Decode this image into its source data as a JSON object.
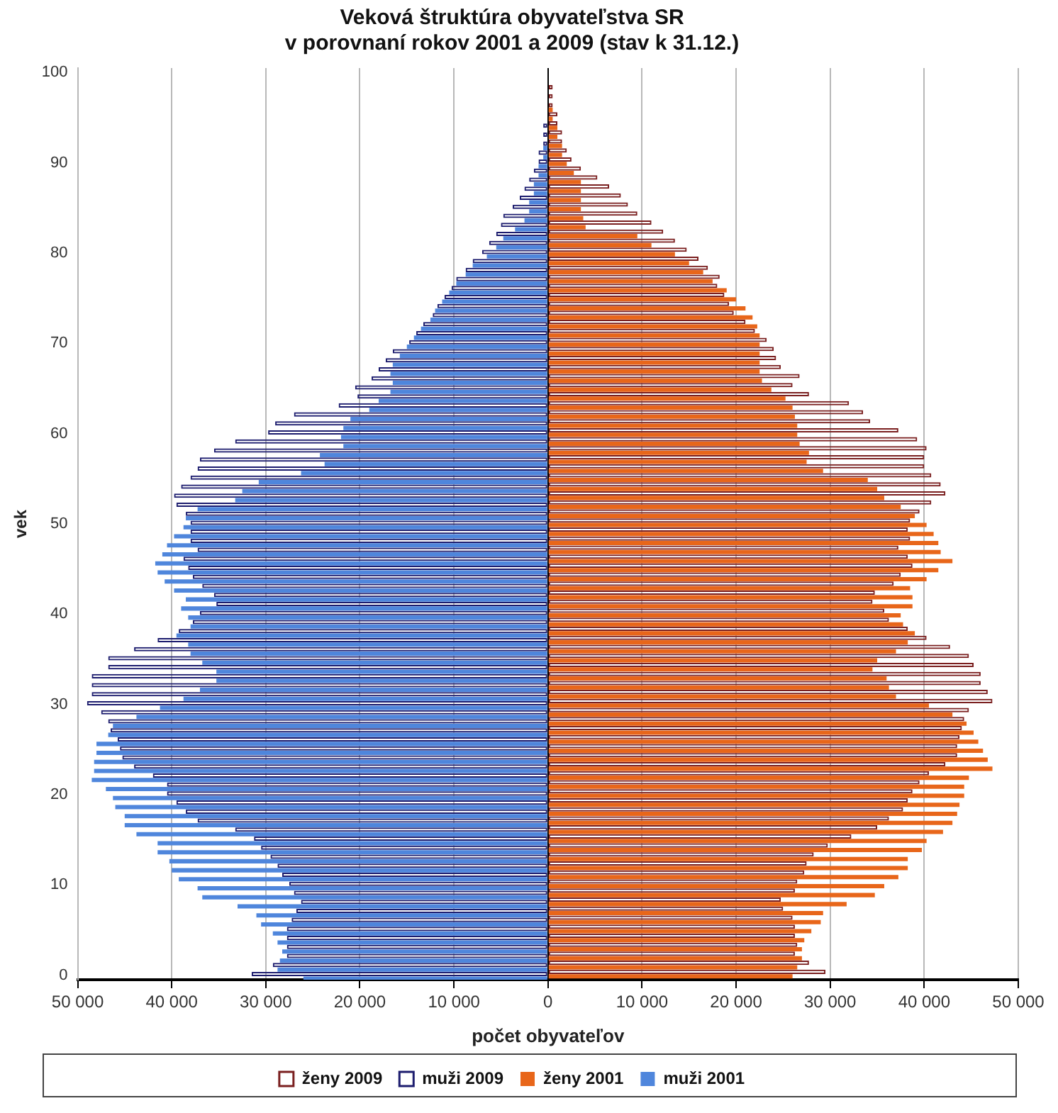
{
  "chart_data": {
    "type": "bar",
    "orientation": "horizontal",
    "title": "Veková štruktúra obyvateľstva SR\nv porovnaní rokov 2001 a 2009 (stav k 31.12.)",
    "xlabel": "počet obyvateľov",
    "ylabel": "vek",
    "categories": [
      "100",
      null,
      null,
      null,
      null,
      null,
      null,
      null,
      null,
      null,
      "90",
      null,
      null,
      null,
      null,
      null,
      null,
      null,
      null,
      null,
      "80",
      null,
      null,
      null,
      null,
      null,
      null,
      null,
      null,
      null,
      "70",
      null,
      null,
      null,
      null,
      null,
      null,
      null,
      null,
      null,
      "60",
      null,
      null,
      null,
      null,
      null,
      null,
      null,
      null,
      null,
      "50",
      null,
      null,
      null,
      null,
      null,
      null,
      null,
      null,
      null,
      "40",
      null,
      null,
      null,
      null,
      null,
      null,
      null,
      null,
      null,
      "30",
      null,
      null,
      null,
      null,
      null,
      null,
      null,
      null,
      null,
      "20",
      null,
      null,
      null,
      null,
      null,
      null,
      null,
      null,
      null,
      "10",
      null,
      null,
      null,
      null,
      null,
      null,
      null,
      null,
      null,
      "0"
    ],
    "series": [
      {
        "name": "ženy 2009",
        "color": "#7a1f1f",
        "values": [
          0,
          0,
          500,
          500,
          500,
          1000,
          1000,
          1500,
          1500,
          2000,
          2500,
          3500,
          5250,
          6500,
          7750,
          8500,
          9500,
          11000,
          12250,
          13500,
          14750,
          16000,
          17000,
          18250,
          18000,
          18750,
          19250,
          19750,
          21000,
          22000,
          23250,
          24000,
          24250,
          24750,
          26750,
          26000,
          27750,
          32000,
          33500,
          34250,
          37250,
          39250,
          40250,
          40000,
          40000,
          40750,
          41750,
          42250,
          40750,
          39500,
          38500,
          38250,
          38500,
          37250,
          38250,
          38750,
          37500,
          36750,
          34750,
          34500,
          35750,
          36250,
          38250,
          40250,
          42750,
          44750,
          45250,
          46000,
          46000,
          46750,
          47250,
          44750,
          44250,
          44000,
          43750,
          43500,
          43500,
          42250,
          40500,
          39500,
          38750,
          38250,
          37750,
          36250,
          35000,
          32250,
          29750,
          28250,
          27500,
          27250,
          26500,
          26250,
          24750,
          25000,
          26000,
          26250,
          26250,
          26500,
          26250,
          27750,
          29500
        ]
      },
      {
        "name": "muži 2009",
        "color": "#1c1c6e",
        "values": [
          0,
          0,
          0,
          0,
          0,
          0,
          -500,
          -500,
          -500,
          -1000,
          -1000,
          -1500,
          -2000,
          -2500,
          -3000,
          -3750,
          -4750,
          -5000,
          -5500,
          -6250,
          -7000,
          -8000,
          -8750,
          -9750,
          -10250,
          -11000,
          -11750,
          -12250,
          -13250,
          -14000,
          -14750,
          -16500,
          -17250,
          -18000,
          -18750,
          -20500,
          -20250,
          -22250,
          -27000,
          -29000,
          -29750,
          -33250,
          -35500,
          -37000,
          -37250,
          -38000,
          -39000,
          -39750,
          -39500,
          -38500,
          -38000,
          -38000,
          -38000,
          -37250,
          -38750,
          -38250,
          -37750,
          -36750,
          -35500,
          -35250,
          -37000,
          -37750,
          -39250,
          -41500,
          -44000,
          -46750,
          -46750,
          -48500,
          -48500,
          -48500,
          -49000,
          -47500,
          -46750,
          -46500,
          -45750,
          -45500,
          -45250,
          -44000,
          -42000,
          -40500,
          -40500,
          -39500,
          -38500,
          -37250,
          -33250,
          -31250,
          -30500,
          -29500,
          -28750,
          -28250,
          -27500,
          -27000,
          -26250,
          -26750,
          -27250,
          -27750,
          -27750,
          -27750,
          -27750,
          -29250,
          -31500
        ]
      },
      {
        "name": "ženy 2001",
        "color": "#e8661a",
        "values": [
          0,
          0,
          0,
          0,
          500,
          500,
          1000,
          1000,
          1500,
          1500,
          2000,
          2750,
          3500,
          3500,
          3500,
          3500,
          3750,
          4000,
          9500,
          11000,
          13500,
          15000,
          16500,
          17500,
          19000,
          20000,
          21000,
          21750,
          22250,
          22500,
          22500,
          22500,
          22500,
          22500,
          22750,
          23750,
          25250,
          26000,
          26250,
          26500,
          26500,
          26750,
          27750,
          27500,
          29250,
          34000,
          35000,
          35750,
          37500,
          39000,
          40250,
          41000,
          41500,
          41750,
          43000,
          41500,
          40250,
          38500,
          38750,
          38750,
          37500,
          37750,
          39000,
          38250,
          37000,
          35000,
          34500,
          36000,
          36250,
          37000,
          40500,
          43000,
          44500,
          45250,
          45750,
          46250,
          46750,
          47250,
          44750,
          44250,
          44250,
          43750,
          43500,
          43000,
          42000,
          40250,
          39750,
          38250,
          38250,
          37250,
          35750,
          34750,
          31750,
          29250,
          29000,
          28000,
          27250,
          27000,
          27000,
          26500,
          26000
        ]
      },
      {
        "name": "muži 2001",
        "color": "#4f86dc",
        "values": [
          0,
          0,
          0,
          0,
          0,
          0,
          0,
          0,
          -500,
          -500,
          -1000,
          -1000,
          -1500,
          -1500,
          -2000,
          -2000,
          -2500,
          -3500,
          -4750,
          -5500,
          -6500,
          -8000,
          -8750,
          -9750,
          -10500,
          -11250,
          -12000,
          -12500,
          -13500,
          -14250,
          -15000,
          -15750,
          -16500,
          -16750,
          -16500,
          -16750,
          -18000,
          -19000,
          -21000,
          -21750,
          -22000,
          -21750,
          -24250,
          -23750,
          -26250,
          -30750,
          -32500,
          -33250,
          -37250,
          -38500,
          -38750,
          -39750,
          -40500,
          -41000,
          -41750,
          -41500,
          -40750,
          -39750,
          -38500,
          -39000,
          -38250,
          -38000,
          -39500,
          -38250,
          -38000,
          -36750,
          -35250,
          -35250,
          -37000,
          -38750,
          -41250,
          -43750,
          -46250,
          -46750,
          -48000,
          -48000,
          -48250,
          -48250,
          -48500,
          -47000,
          -46250,
          -46000,
          -45000,
          -45000,
          -43750,
          -41500,
          -41500,
          -40250,
          -40000,
          -39250,
          -37250,
          -36750,
          -33000,
          -31000,
          -30500,
          -29250,
          -28750,
          -28250,
          -28500,
          -28750,
          -26000
        ]
      }
    ],
    "xlim": [
      -50000,
      50000
    ],
    "xticks": [
      {
        "value": -50000,
        "label": "50 000"
      },
      {
        "value": -40000,
        "label": "40 000"
      },
      {
        "value": -30000,
        "label": "30 000"
      },
      {
        "value": -20000,
        "label": "20 000"
      },
      {
        "value": -10000,
        "label": "10 000"
      },
      0,
      {
        "value": 10000,
        "label": "10 000"
      },
      {
        "value": 20000,
        "label": "20 000"
      },
      {
        "value": 30000,
        "label": "30 000"
      },
      {
        "value": 40000,
        "label": "40 000"
      },
      {
        "value": 50000,
        "label": "50 000"
      }
    ],
    "grid": "x",
    "legend": "bottom"
  }
}
